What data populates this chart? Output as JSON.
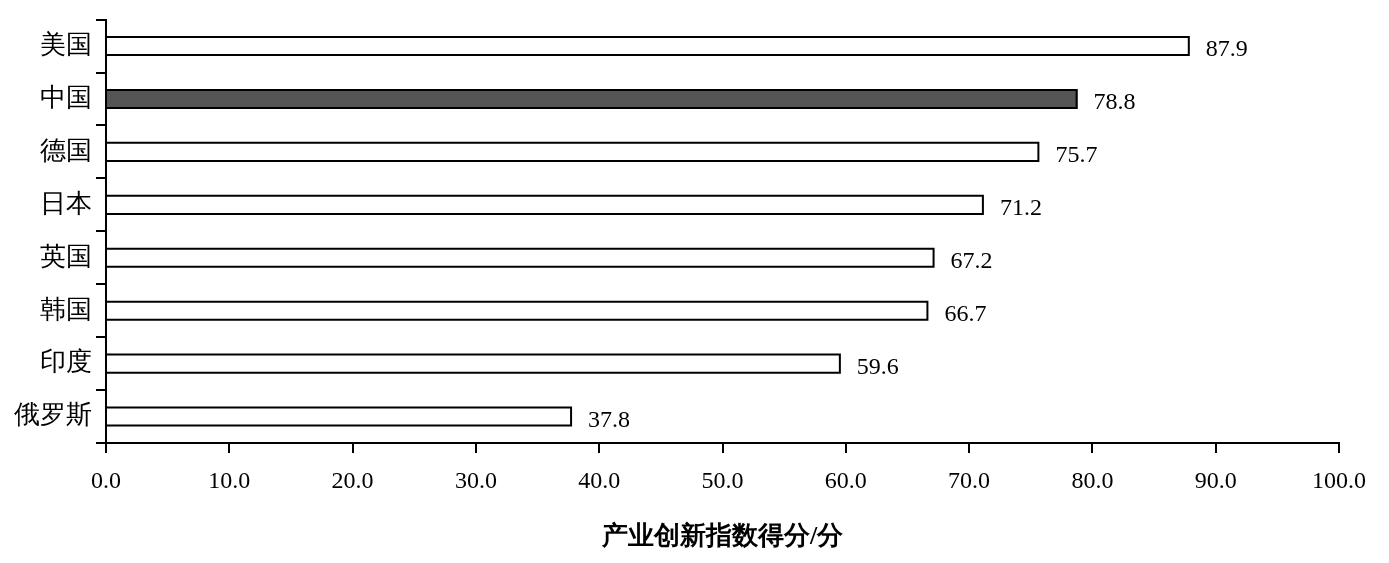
{
  "chart_data": {
    "type": "bar",
    "orientation": "horizontal",
    "xlabel": "产业创新指数得分/分",
    "categories": [
      "美国",
      "中国",
      "德国",
      "日本",
      "英国",
      "韩国",
      "印度",
      "俄罗斯"
    ],
    "values": [
      87.9,
      78.8,
      75.7,
      71.2,
      67.2,
      66.7,
      59.6,
      37.8
    ],
    "colors": [
      "#ffffff",
      "#555555",
      "#ffffff",
      "#ffffff",
      "#ffffff",
      "#ffffff",
      "#ffffff",
      "#ffffff"
    ],
    "xlim": [
      0,
      100
    ],
    "xticks": [
      {
        "value": 0,
        "label": "0.0"
      },
      {
        "value": 10,
        "label": "10.0"
      },
      {
        "value": 20,
        "label": "20.0"
      },
      {
        "value": 30,
        "label": "30.0"
      },
      {
        "value": 40,
        "label": "40.0"
      },
      {
        "value": 50,
        "label": "50.0"
      },
      {
        "value": 60,
        "label": "60.0"
      },
      {
        "value": 70,
        "label": "70.0"
      },
      {
        "value": 80,
        "label": "80.0"
      },
      {
        "value": 90,
        "label": "90.0"
      },
      {
        "value": 100,
        "label": "100.0"
      }
    ],
    "grid": false,
    "legend": false,
    "data_labels": true
  }
}
